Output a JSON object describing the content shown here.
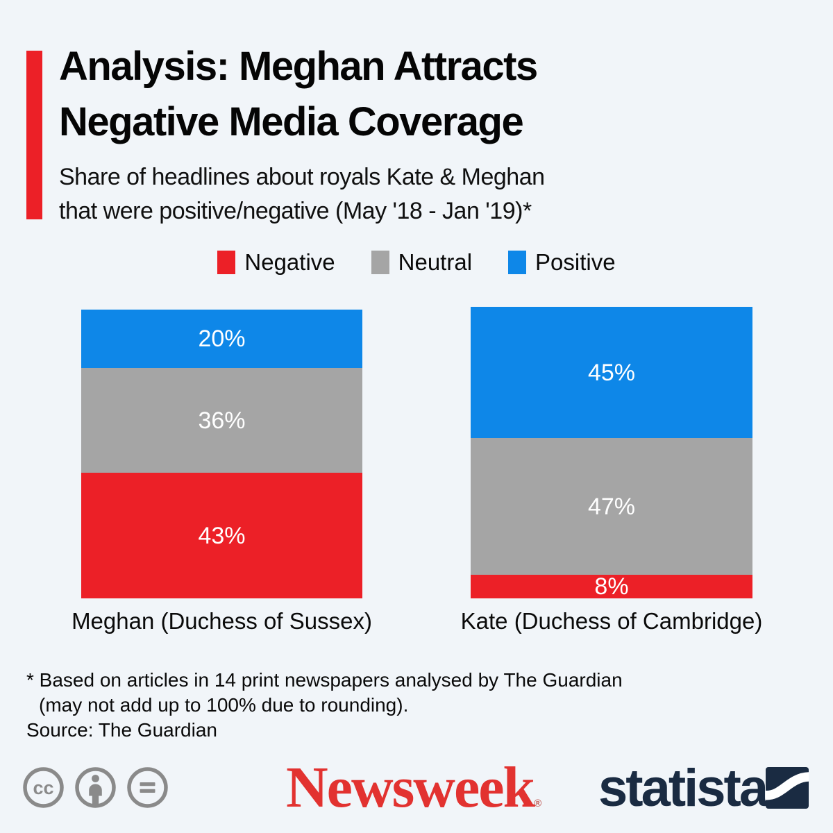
{
  "header": {
    "title_lines": [
      "Analysis: Meghan Attracts",
      "Negative Media Coverage"
    ],
    "subtitle_lines": [
      "Share of headlines about royals Kate & Meghan",
      "that were positive/negative (May '18 - Jan '19)*"
    ]
  },
  "chart_data": {
    "type": "bar",
    "stacked": true,
    "orientation": "vertical",
    "unit": "percent",
    "value_suffix": "%",
    "ylim": [
      0,
      100
    ],
    "grid": false,
    "legend_position": "top",
    "categories": [
      "Meghan (Duchess of Sussex)",
      "Kate (Duchess of Cambridge)"
    ],
    "series": [
      {
        "name": "Negative",
        "color": "#ec2027",
        "values": [
          43,
          8
        ]
      },
      {
        "name": "Neutral",
        "color": "#a5a5a5",
        "values": [
          36,
          47
        ]
      },
      {
        "name": "Positive",
        "color": "#0e87e8",
        "values": [
          20,
          45
        ]
      }
    ]
  },
  "footnote": {
    "line1": "* Based on articles in 14 print newspapers analysed by The Guardian",
    "line2": "(may not add up to 100% due to rounding).",
    "source": "Source: The Guardian"
  },
  "branding": {
    "newsweek_wordmark": "Newsweek",
    "registered_mark": "®",
    "statista_wordmark": "statista",
    "colors": {
      "background": "#f1f5f9",
      "accent_red": "#ec2027",
      "newsweek_red": "#e23230",
      "statista_navy": "#1a2b42",
      "license_gray": "#8a8a8a",
      "bar_label_white": "#ffffff"
    }
  },
  "license_icons": [
    "cc-icon",
    "attribution-icon",
    "no-derivatives-icon"
  ]
}
